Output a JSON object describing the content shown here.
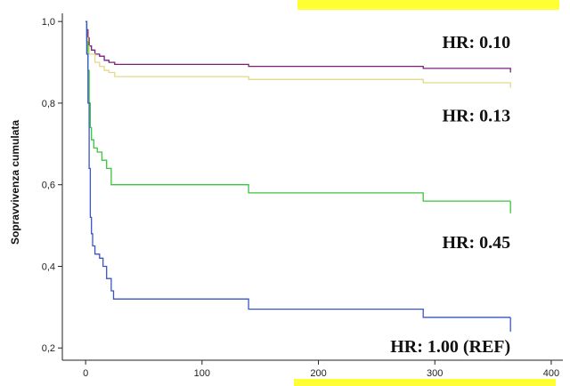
{
  "chart_data": {
    "type": "line",
    "step": true,
    "ylabel": "Sopravvivenza cumulata",
    "xlim": [
      -20,
      410
    ],
    "ylim": [
      0.17,
      1.02
    ],
    "x_ticks": [
      0,
      100,
      200,
      300,
      400
    ],
    "x_tick_labels": [
      "0",
      "100",
      "200",
      "300",
      "400"
    ],
    "y_ticks": [
      0.2,
      0.4,
      0.6,
      0.8,
      1.0
    ],
    "y_tick_labels": [
      "0,2",
      "0,4",
      "0,6",
      "0,8",
      "1,0"
    ],
    "grid": false,
    "series": [
      {
        "color": "#7a1f78",
        "points": [
          [
            0,
            1.0
          ],
          [
            1,
            0.98
          ],
          [
            2,
            0.96
          ],
          [
            3,
            0.94
          ],
          [
            5,
            0.93
          ],
          [
            8,
            0.92
          ],
          [
            12,
            0.915
          ],
          [
            16,
            0.905
          ],
          [
            20,
            0.9
          ],
          [
            25,
            0.895
          ],
          [
            140,
            0.89
          ],
          [
            290,
            0.885
          ],
          [
            365,
            0.88
          ]
        ],
        "censor_drop": 0.875
      },
      {
        "color": "#e3d98c",
        "points": [
          [
            0,
            1.0
          ],
          [
            1,
            0.96
          ],
          [
            2,
            0.94
          ],
          [
            3,
            0.92
          ],
          [
            8,
            0.9
          ],
          [
            12,
            0.89
          ],
          [
            16,
            0.88
          ],
          [
            20,
            0.875
          ],
          [
            25,
            0.865
          ],
          [
            140,
            0.858
          ],
          [
            290,
            0.85
          ],
          [
            365,
            0.845
          ]
        ],
        "censor_drop": 0.838
      },
      {
        "color": "#3cc43c",
        "points": [
          [
            0,
            1.0
          ],
          [
            1,
            0.95
          ],
          [
            2,
            0.88
          ],
          [
            3,
            0.8
          ],
          [
            4,
            0.74
          ],
          [
            5,
            0.71
          ],
          [
            7,
            0.69
          ],
          [
            10,
            0.68
          ],
          [
            14,
            0.66
          ],
          [
            18,
            0.64
          ],
          [
            22,
            0.6
          ],
          [
            140,
            0.58
          ],
          [
            290,
            0.56
          ],
          [
            365,
            0.56
          ]
        ],
        "censor_drop": 0.53
      },
      {
        "color": "#3656c8",
        "points": [
          [
            0,
            1.0
          ],
          [
            1,
            0.92
          ],
          [
            2,
            0.8
          ],
          [
            3,
            0.64
          ],
          [
            4,
            0.52
          ],
          [
            5,
            0.48
          ],
          [
            6,
            0.45
          ],
          [
            8,
            0.43
          ],
          [
            12,
            0.42
          ],
          [
            15,
            0.4
          ],
          [
            18,
            0.37
          ],
          [
            22,
            0.34
          ],
          [
            24,
            0.32
          ],
          [
            140,
            0.295
          ],
          [
            290,
            0.275
          ],
          [
            365,
            0.275
          ]
        ],
        "censor_drop": 0.24
      }
    ],
    "annotations": [
      {
        "text": "HR: 0.10",
        "x": 365,
        "y": 0.935
      },
      {
        "text": "HR: 0.13",
        "x": 365,
        "y": 0.755
      },
      {
        "text": "HR: 0.45",
        "x": 365,
        "y": 0.445
      },
      {
        "text": "HR: 1.00 (REF)",
        "x": 365,
        "y": 0.19
      }
    ],
    "highlight_color": "#ffff33"
  }
}
